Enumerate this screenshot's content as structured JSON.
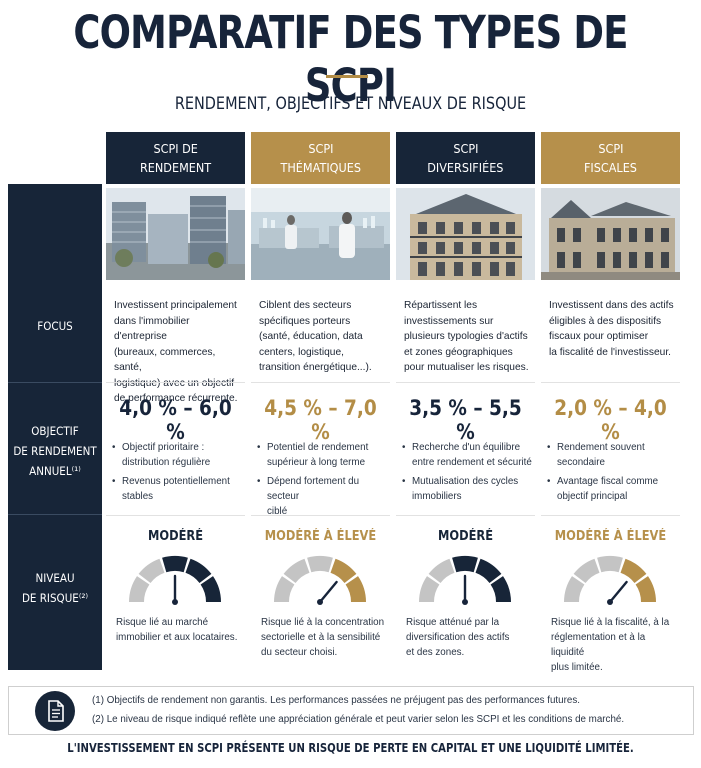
{
  "title": "COMPARATIF DES TYPES DE SCPI",
  "subtitle": "RENDEMENT, OBJECTIFS ET NIVEAUX DE RISQUE",
  "row_labels": {
    "focus": [
      "FOCUS"
    ],
    "objective": [
      "OBJECTIF",
      "DE RENDEMENT",
      "ANNUEL⁽¹⁾"
    ],
    "risk": [
      "NIVEAU",
      "DE RISQUE⁽²⁾"
    ]
  },
  "columns": [
    {
      "header": [
        "SCPI DE",
        "RENDEMENT"
      ],
      "theme": "navy",
      "photo": "office-buildings-photo",
      "focus": [
        "Investissent principalement",
        "dans l'immobilier d'entreprise",
        "(bureaux, commerces, santé,",
        "logistique) avec un objectif",
        "de performance récurrente."
      ],
      "yield": "4,0 % – 6,0 %",
      "bullets": [
        [
          "Objectif prioritaire :",
          "distribution régulière"
        ],
        [
          "Revenus potentiellement",
          "stables"
        ]
      ],
      "risk_label": "MODÉRÉ",
      "risk_level": 0.5,
      "risk_text": [
        "Risque lié au marché",
        "immobilier et aux locataires."
      ]
    },
    {
      "header": [
        "SCPI",
        "THÉMATIQUES"
      ],
      "theme": "gold",
      "photo": "laboratory-photo",
      "focus": [
        "Ciblent des secteurs",
        "spécifiques porteurs",
        "(santé, éducation, data",
        "centers, logistique,",
        "transition énergétique...)."
      ],
      "yield": "4,5 % – 7,0 %",
      "bullets": [
        [
          "Potentiel de rendement",
          "supérieur à long terme"
        ],
        [
          "Dépend fortement du secteur",
          "ciblé"
        ]
      ],
      "risk_label": "MODÉRÉ À ÉLEVÉ",
      "risk_level": 0.72,
      "risk_text": [
        "Risque lié à la concentration",
        "sectorielle et à la sensibilité",
        "du secteur choisi."
      ]
    },
    {
      "header": [
        "SCPI",
        "DIVERSIFIÉES"
      ],
      "theme": "navy",
      "photo": "haussmann-building-photo",
      "focus": [
        "Répartissent les",
        "investissements sur",
        "plusieurs typologies d'actifs",
        "et zones géographiques",
        "pour mutualiser les risques."
      ],
      "yield": "3,5 % – 5,5 %",
      "bullets": [
        [
          "Recherche d'un équilibre",
          "entre rendement et sécurité"
        ],
        [
          "Mutualisation des cycles",
          "immobiliers"
        ]
      ],
      "risk_label": "MODÉRÉ",
      "risk_level": 0.5,
      "risk_text": [
        "Risque atténué par la",
        "diversification des actifs",
        "et des zones."
      ]
    },
    {
      "header": [
        "SCPI",
        "FISCALES"
      ],
      "theme": "gold",
      "photo": "historic-building-photo",
      "focus": [
        "Investissent dans des actifs",
        "éligibles à des dispositifs",
        "fiscaux pour optimiser",
        "la fiscalité de l'investisseur."
      ],
      "yield": "2,0 % – 4,0 %",
      "bullets": [
        [
          "Rendement souvent",
          "secondaire"
        ],
        [
          "Avantage fiscal comme",
          "objectif principal"
        ]
      ],
      "risk_label": "MODÉRÉ À ÉLEVÉ",
      "risk_level": 0.72,
      "risk_text": [
        "Risque lié à la fiscalité, à la",
        "réglementation et à la liquidité",
        "plus limitée."
      ]
    }
  ],
  "notes": [
    "(1) Objectifs de rendement non garantis. Les performances passées ne préjugent pas des performances futures.",
    "(2) Le niveau de risque indiqué reflète une appréciation générale et peut varier selon les SCPI et les conditions de marché."
  ],
  "footer": "L'INVESTISSEMENT EN SCPI PRÉSENTE UN RISQUE DE PERTE EN CAPITAL ET UNE LIQUIDITÉ LIMITÉE.",
  "colors": {
    "navy": "#172538",
    "gold": "#b6904b",
    "gauge_grey": "#c4c4c4"
  },
  "icons": {
    "notes": "document-icon"
  }
}
